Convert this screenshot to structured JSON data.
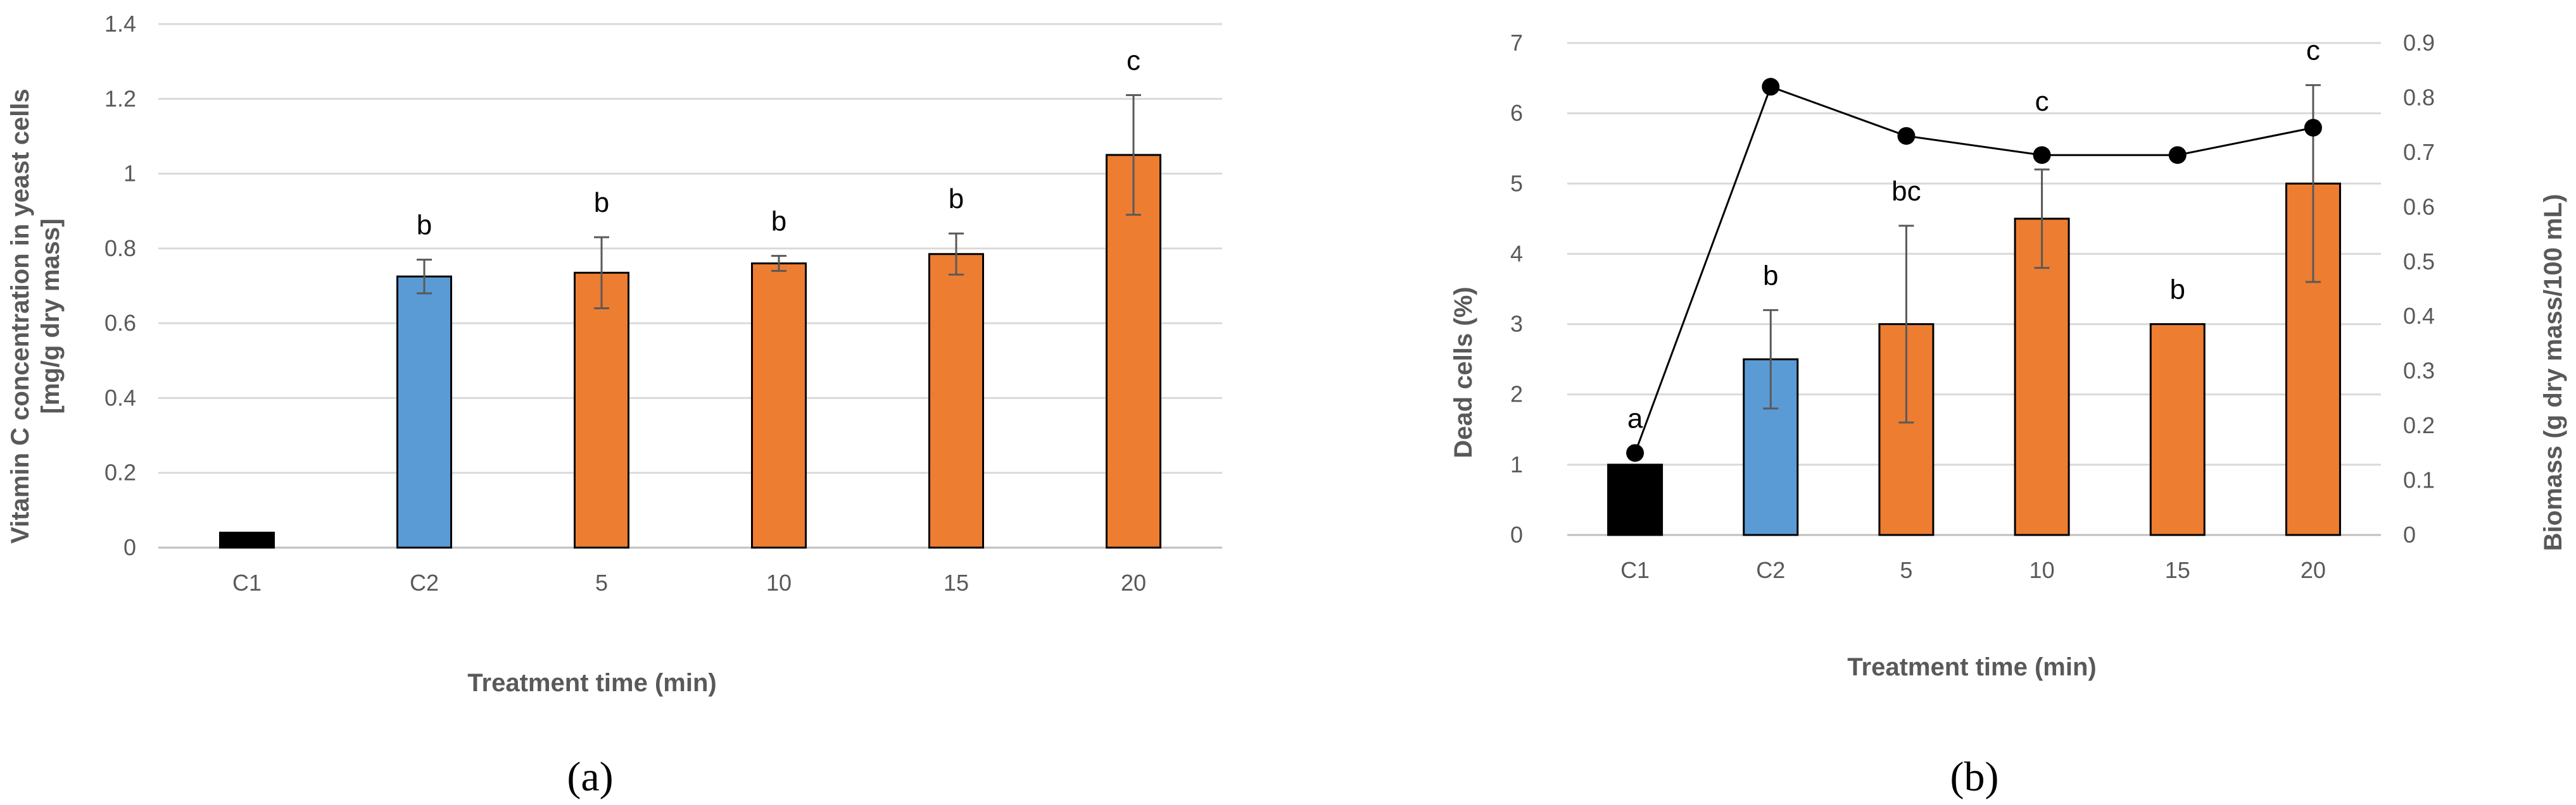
{
  "chart_data": [
    {
      "panel": "(a)",
      "type": "bar",
      "xlabel": "Treatment time (min)",
      "ylabel_line1": "Vitamin C concentration in yeast cells",
      "ylabel_line2": "[mg/g dry mass]",
      "ylim": [
        0,
        1.4
      ],
      "yticks": [
        "0",
        "0.2",
        "0.4",
        "0.6",
        "0.8",
        "1",
        "1.2",
        "1.4"
      ],
      "categories": [
        "C1",
        "C2",
        "5",
        "10",
        "15",
        "20"
      ],
      "values": [
        0.04,
        0.725,
        0.735,
        0.76,
        0.785,
        1.05
      ],
      "errors": [
        0.0,
        0.045,
        0.095,
        0.02,
        0.055,
        0.16
      ],
      "sig_labels": [
        "",
        "b",
        "b",
        "b",
        "b",
        "c"
      ],
      "bar_colors": [
        "#000000",
        "#5b9bd5",
        "#ed7d31",
        "#ed7d31",
        "#ed7d31",
        "#ed7d31"
      ],
      "grid": true
    },
    {
      "panel": "(b)",
      "type": "bar+line",
      "xlabel": "Treatment time (min)",
      "ylabel_left": "Dead cells (%)",
      "ylabel_right": "Biomass  (g dry mass/100 mL)",
      "ylim_left": [
        0,
        7
      ],
      "yticks_left": [
        "0",
        "1",
        "2",
        "3",
        "4",
        "5",
        "6",
        "7"
      ],
      "ylim_right": [
        0,
        0.9
      ],
      "yticks_right": [
        "0",
        "0.1",
        "0.2",
        "0.3",
        "0.4",
        "0.5",
        "0.6",
        "0.7",
        "0.8",
        "0.9"
      ],
      "categories": [
        "C1",
        "C2",
        "5",
        "10",
        "15",
        "20"
      ],
      "bar_values": [
        1.0,
        2.5,
        3.0,
        4.5,
        3.0,
        5.0
      ],
      "bar_errors": [
        0.0,
        0.7,
        1.4,
        0.7,
        0.0,
        1.4
      ],
      "line_values": [
        0.15,
        0.82,
        0.73,
        0.695,
        0.695,
        0.745
      ],
      "sig_labels": [
        "a",
        "b",
        "bc",
        "c",
        "b",
        "c"
      ],
      "bar_colors": [
        "#000000",
        "#5b9bd5",
        "#ed7d31",
        "#ed7d31",
        "#ed7d31",
        "#ed7d31"
      ],
      "line_color": "#000000",
      "grid": true
    }
  ],
  "colors": {
    "grid": "#d9d9d9",
    "axis": "#bfbfbf",
    "error": "#595959"
  }
}
